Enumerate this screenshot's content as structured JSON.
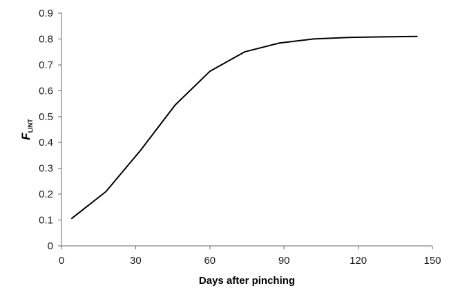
{
  "chart_data": {
    "type": "line",
    "title": "",
    "xlabel": "Days after pinching",
    "ylabel": {
      "main": "F",
      "subscript": "LINT"
    },
    "xlim": [
      0,
      150
    ],
    "ylim": [
      0,
      0.9
    ],
    "x_ticks": [
      "0",
      "30",
      "60",
      "90",
      "120",
      "150"
    ],
    "y_ticks": [
      "0",
      "0.1",
      "0.2",
      "0.3",
      "0.4",
      "0.5",
      "0.6",
      "0.7",
      "0.8",
      "0.9"
    ],
    "grid": false,
    "legend": "none",
    "series": [
      {
        "color": "#000000",
        "x": [
          4,
          18,
          32,
          46,
          60,
          74,
          88,
          102,
          116,
          130,
          144
        ],
        "y": [
          0.105,
          0.21,
          0.37,
          0.545,
          0.675,
          0.75,
          0.784,
          0.8,
          0.806,
          0.808,
          0.81
        ]
      }
    ]
  }
}
